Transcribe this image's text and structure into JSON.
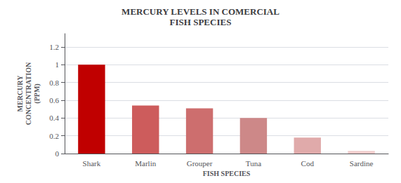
{
  "chart_data": {
    "type": "bar",
    "title": "MERCURY LEVELS IN COMERCIAL\nFISH SPECIES",
    "xlabel": "FISH SPECIES",
    "ylabel": "MERCURY\nCONCENTRATION\n(PPM)",
    "categories": [
      "Shark",
      "Marlin",
      "Grouper",
      "Tuna",
      "Cod",
      "Sardine"
    ],
    "values": [
      1.0,
      0.54,
      0.51,
      0.4,
      0.18,
      0.03
    ],
    "colors": [
      "#c00000",
      "#cd5c5c",
      "#cd6e6e",
      "#cd8888",
      "#e0aaaa",
      "#f0cccc"
    ],
    "ylim": [
      0,
      1.35
    ],
    "yticks": [
      0,
      0.2,
      0.4,
      0.6,
      0.8,
      1,
      1.2
    ],
    "grid": true
  }
}
